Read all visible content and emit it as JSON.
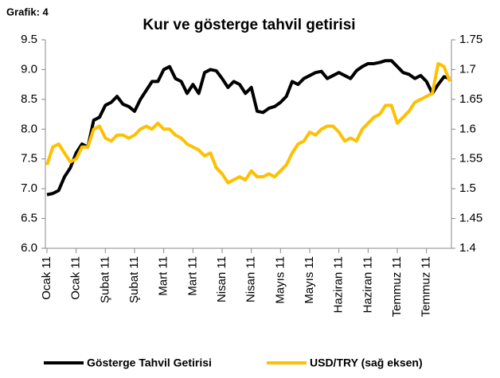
{
  "chart_data": {
    "type": "line",
    "title": "Kur ve gösterge tahvil getirisi",
    "subtitle": "Grafik: 4",
    "categories": [
      "Ocak 11",
      null,
      null,
      null,
      null,
      "Ocak 11",
      null,
      null,
      null,
      null,
      "Şubat 11",
      null,
      null,
      null,
      null,
      "Şubat 11",
      null,
      null,
      null,
      null,
      "Mart 11",
      null,
      null,
      null,
      null,
      "Mart 11",
      null,
      null,
      null,
      null,
      "Nisan 11",
      null,
      null,
      null,
      null,
      "Nisan 11",
      null,
      null,
      null,
      null,
      "Mayıs 11",
      null,
      null,
      null,
      null,
      "Mayıs 11",
      null,
      null,
      null,
      null,
      "Haziran 11",
      null,
      null,
      null,
      null,
      "Haziran 11",
      null,
      null,
      null,
      null,
      "Temmuz 11",
      null,
      null,
      null,
      null,
      "Temmuz 11",
      null,
      null,
      null,
      null
    ],
    "series": [
      {
        "name": "Gösterge Tahvil Getirisi",
        "color": "#000000",
        "values": [
          6.9,
          6.92,
          6.97,
          7.2,
          7.35,
          7.6,
          7.75,
          7.7,
          8.15,
          8.2,
          8.4,
          8.45,
          8.55,
          8.42,
          8.38,
          8.3,
          8.5,
          8.65,
          8.8,
          8.8,
          9.0,
          9.05,
          8.85,
          8.8,
          8.6,
          8.75,
          8.6,
          8.95,
          9.0,
          8.98,
          8.85,
          8.7,
          8.8,
          8.75,
          8.6,
          8.7,
          8.3,
          8.28,
          8.35,
          8.38,
          8.45,
          8.55,
          8.8,
          8.75,
          8.85,
          8.9,
          8.95,
          8.97,
          8.85,
          8.9,
          8.95,
          8.9,
          8.85,
          8.98,
          9.05,
          9.1,
          9.1,
          9.12,
          9.15,
          9.15,
          9.05,
          8.95,
          8.92,
          8.85,
          8.9,
          8.8,
          8.6,
          8.75,
          8.88,
          8.85
        ]
      },
      {
        "name": "USD/TRY (sağ eksen)",
        "color": "#ffc000",
        "axis": "y2",
        "values": [
          1.54,
          1.57,
          1.575,
          1.56,
          1.545,
          1.55,
          1.57,
          1.57,
          1.6,
          1.605,
          1.585,
          1.58,
          1.59,
          1.59,
          1.585,
          1.59,
          1.6,
          1.605,
          1.6,
          1.61,
          1.6,
          1.6,
          1.59,
          1.585,
          1.575,
          1.57,
          1.565,
          1.555,
          1.56,
          1.535,
          1.525,
          1.51,
          1.515,
          1.52,
          1.515,
          1.53,
          1.52,
          1.52,
          1.525,
          1.52,
          1.53,
          1.54,
          1.56,
          1.575,
          1.58,
          1.595,
          1.59,
          1.6,
          1.605,
          1.605,
          1.595,
          1.58,
          1.585,
          1.58,
          1.6,
          1.61,
          1.62,
          1.625,
          1.64,
          1.64,
          1.61,
          1.62,
          1.63,
          1.645,
          1.65,
          1.655,
          1.66,
          1.71,
          1.705,
          1.68
        ]
      }
    ],
    "ylim": [
      6,
      9.5
    ],
    "yticks": [
      {
        "value": 6,
        "label": "6.0"
      },
      6.5,
      {
        "value": 7,
        "label": "7.0"
      },
      7.5,
      {
        "value": 8,
        "label": "8.0"
      },
      8.5,
      {
        "value": 9,
        "label": "9.0"
      },
      9.5
    ],
    "y2lim": [
      1.4,
      1.75
    ],
    "y2ticks": [
      1.4,
      1.45,
      1.5,
      1.55,
      1.6,
      1.65,
      1.7,
      1.75
    ],
    "legend": "bottom"
  }
}
